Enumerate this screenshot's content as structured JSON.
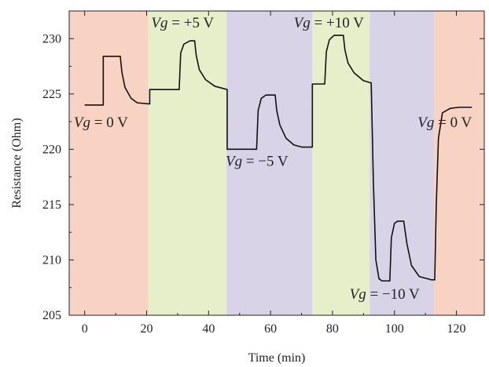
{
  "chart_data": {
    "type": "line",
    "xlabel": "Time (min)",
    "ylabel": "Resistance (Ohm)",
    "xlim": [
      -5,
      129
    ],
    "ylim": [
      205,
      232.5
    ],
    "x_ticks": [
      "0",
      "20",
      "40",
      "60",
      "80",
      "100",
      "120"
    ],
    "x_tick_values": [
      0,
      20,
      40,
      60,
      80,
      100,
      120
    ],
    "y_ticks": [
      "205",
      "210",
      "215",
      "220",
      "225",
      "230"
    ],
    "y_tick_values": [
      205,
      210,
      215,
      220,
      225,
      230
    ],
    "grid": false,
    "regions": [
      {
        "x0": -5,
        "x1": 20.5,
        "color": "#f8d2c2"
      },
      {
        "x0": 20.5,
        "x1": 45.8,
        "color": "#e6efc9"
      },
      {
        "x0": 45.8,
        "x1": 73.5,
        "color": "#d8d3e6"
      },
      {
        "x0": 73.5,
        "x1": 92,
        "color": "#e6efc9"
      },
      {
        "x0": 92,
        "x1": 112.8,
        "color": "#d8d3e6"
      },
      {
        "x0": 112.8,
        "x1": 129,
        "color": "#f8d2c2"
      }
    ],
    "annotations": [
      {
        "var": "Vg",
        "text": " = 0 V",
        "x": -3.5,
        "y": 222.0
      },
      {
        "var": "Vg",
        "text": " = +5 V",
        "x": 21.5,
        "y": 231.0
      },
      {
        "var": "Vg",
        "text": " = −5 V",
        "x": 45.5,
        "y": 218.5
      },
      {
        "var": "Vg",
        "text": " = +10 V",
        "x": 67.5,
        "y": 231.0
      },
      {
        "var": "Vg",
        "text": " = −10 V",
        "x": 85.5,
        "y": 206.5
      },
      {
        "var": "Vg",
        "text": " = 0 V",
        "x": 107.5,
        "y": 222.0
      }
    ],
    "series": [
      {
        "color": "#111111",
        "points": [
          [
            0,
            224
          ],
          [
            6,
            224
          ],
          [
            6,
            228.4
          ],
          [
            11.5,
            228.4
          ],
          [
            12,
            227
          ],
          [
            13,
            225.6
          ],
          [
            15,
            224.6
          ],
          [
            17,
            224.2
          ],
          [
            21,
            224.1
          ],
          [
            21,
            225.4
          ],
          [
            30.5,
            225.4
          ],
          [
            31,
            228.7
          ],
          [
            32,
            229.5
          ],
          [
            34,
            229.8
          ],
          [
            35.5,
            229.8
          ],
          [
            36,
            228.5
          ],
          [
            37,
            227.2
          ],
          [
            39,
            226.3
          ],
          [
            42,
            225.7
          ],
          [
            46,
            225.4
          ],
          [
            46,
            220
          ],
          [
            55.5,
            220
          ],
          [
            56,
            223.5
          ],
          [
            57,
            224.6
          ],
          [
            58.5,
            224.9
          ],
          [
            61.5,
            224.9
          ],
          [
            62,
            223.5
          ],
          [
            63,
            222.2
          ],
          [
            65,
            221
          ],
          [
            67.5,
            220.4
          ],
          [
            70,
            220.2
          ],
          [
            73.5,
            220.2
          ],
          [
            73.5,
            225.9
          ],
          [
            77.5,
            225.9
          ],
          [
            78,
            228.8
          ],
          [
            79,
            229.9
          ],
          [
            80.5,
            230.3
          ],
          [
            83.5,
            230.3
          ],
          [
            84,
            229
          ],
          [
            85,
            227.8
          ],
          [
            87,
            226.9
          ],
          [
            90,
            226.2
          ],
          [
            92.5,
            226
          ],
          [
            92.5,
            226
          ],
          [
            93.2,
            217
          ],
          [
            94,
            210
          ],
          [
            95,
            208.3
          ],
          [
            96,
            208.1
          ],
          [
            98.5,
            208.1
          ],
          [
            99,
            212
          ],
          [
            100,
            213.3
          ],
          [
            101,
            213.5
          ],
          [
            103,
            213.5
          ],
          [
            104,
            211.5
          ],
          [
            105.5,
            209.5
          ],
          [
            108,
            208.5
          ],
          [
            112,
            208.2
          ],
          [
            113,
            208.2
          ],
          [
            113.5,
            215
          ],
          [
            114.2,
            221
          ],
          [
            115.5,
            223.3
          ],
          [
            118,
            223.7
          ],
          [
            121,
            223.8
          ],
          [
            125,
            223.8
          ]
        ]
      }
    ]
  }
}
